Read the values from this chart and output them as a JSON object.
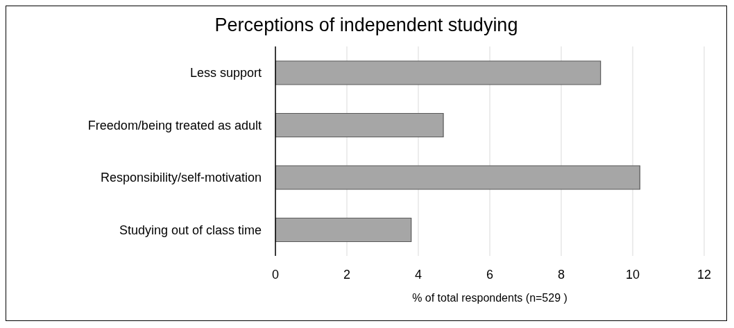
{
  "chart_data": {
    "type": "bar",
    "orientation": "horizontal",
    "title": "Perceptions of independent studying",
    "categories": [
      "Less support ",
      "Freedom/being treated as adult",
      "Responsibility/self-motivation",
      "Studying out of class time"
    ],
    "values": [
      9.1,
      4.7,
      10.2,
      3.8
    ],
    "color": "#a6a6a6",
    "xlabel": "% of total respondents (n=529 )",
    "xlim": [
      0,
      12
    ],
    "xticks": [
      0,
      2,
      4,
      6,
      8,
      10,
      12
    ],
    "grid": "x"
  }
}
